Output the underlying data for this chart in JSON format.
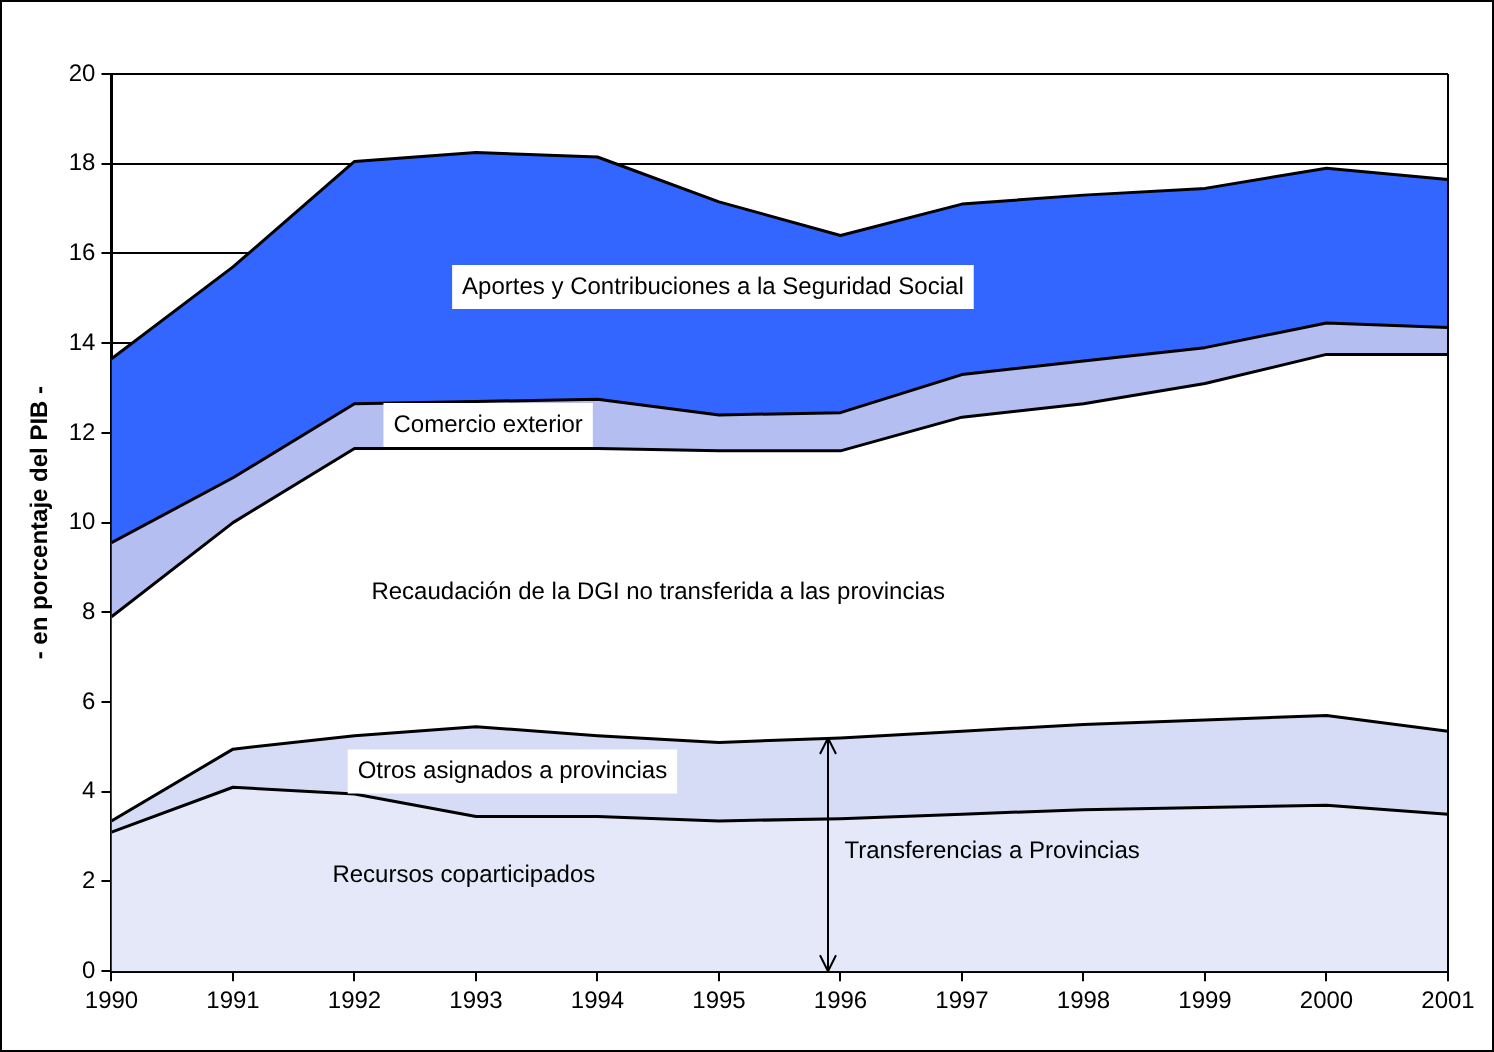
{
  "chart_data": {
    "type": "area",
    "ylabel": "- en porcentaje del PIB -",
    "stacked": true,
    "grid": "y",
    "legend": false,
    "marker": "none",
    "x": [
      1990,
      1991,
      1992,
      1993,
      1994,
      1995,
      1996,
      1997,
      1998,
      1999,
      2000,
      2001
    ],
    "xlim": [
      1990,
      2001
    ],
    "xticks": [
      1990,
      1991,
      1992,
      1993,
      1994,
      1995,
      1996,
      1997,
      1998,
      1999,
      2000,
      2001
    ],
    "ylim": [
      0,
      20
    ],
    "yticks": [
      0,
      2,
      4,
      6,
      8,
      10,
      12,
      14,
      16,
      18,
      20
    ],
    "series": [
      {
        "name": "Recursos coparticipados",
        "color": "#e4e8f8",
        "values": [
          3.1,
          4.1,
          3.95,
          3.45,
          3.45,
          3.35,
          3.4,
          3.5,
          3.6,
          3.65,
          3.7,
          3.5
        ]
      },
      {
        "name": "Otros asignados a provincias",
        "color": "#d6dcf6",
        "values": [
          0.25,
          0.85,
          1.3,
          2.0,
          1.8,
          1.75,
          1.8,
          1.85,
          1.9,
          1.95,
          2.0,
          1.85
        ]
      },
      {
        "name": "Recaudación de la DGI no transferida a las provincias",
        "color": "#ffffff",
        "values": [
          4.55,
          5.05,
          6.4,
          6.2,
          6.4,
          6.5,
          6.4,
          7.0,
          7.15,
          7.5,
          8.05,
          8.4
        ]
      },
      {
        "name": "Comercio exterior",
        "color": "#b4bef0",
        "values": [
          1.65,
          1.0,
          1.0,
          1.05,
          1.1,
          0.8,
          0.85,
          0.95,
          0.95,
          0.8,
          0.7,
          0.6
        ]
      },
      {
        "name": "Aportes y Contribuciones a la Seguridad Social",
        "color": "#3366ff",
        "values": [
          4.1,
          4.7,
          5.4,
          5.55,
          5.4,
          4.75,
          3.95,
          3.8,
          3.7,
          3.55,
          3.45,
          3.3
        ]
      }
    ],
    "annotations": [
      {
        "text": "Transferencias a Provincias",
        "x": 1996,
        "y": 3.3
      }
    ]
  }
}
